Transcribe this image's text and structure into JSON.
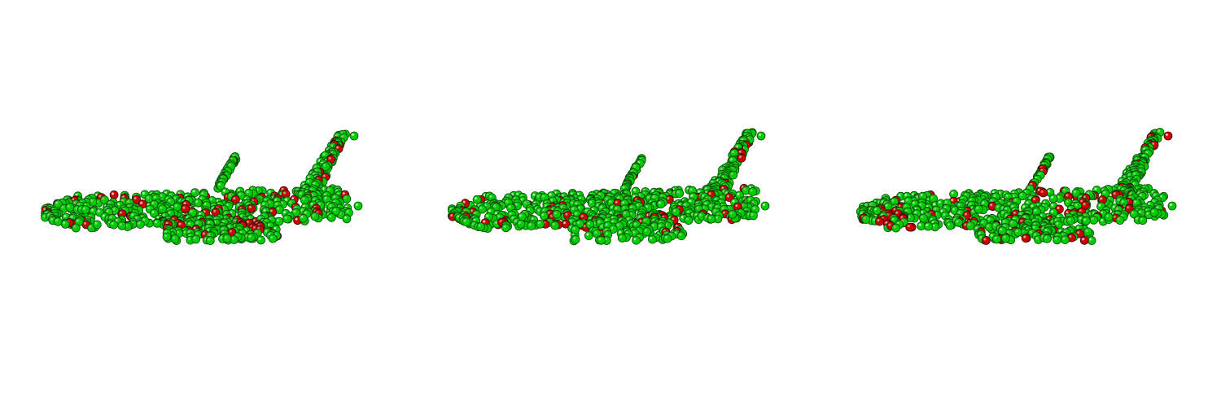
{
  "point_color": "#00cc00",
  "highlight_color": "#cc0000"
}
